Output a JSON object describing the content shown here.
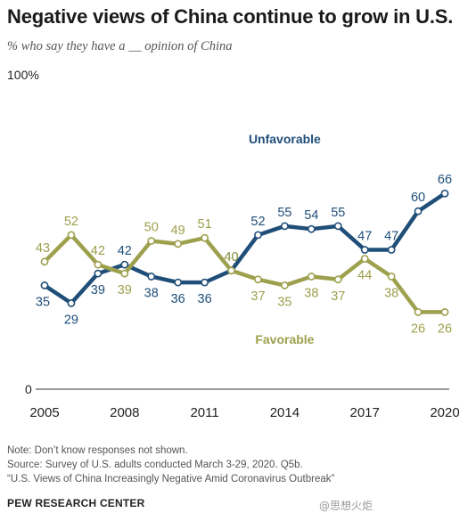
{
  "header": {
    "title": "Negative views of China continue to grow in U.S.",
    "subtitle": "% who say they have a __ opinion of China"
  },
  "colors": {
    "unfavorable": "#1f4e79",
    "favorable": "#9da04d",
    "axis": "#333333"
  },
  "chart_data": {
    "type": "line",
    "x": [
      2005,
      2006,
      2007,
      2008,
      2009,
      2010,
      2011,
      2012,
      2013,
      2014,
      2015,
      2016,
      2017,
      2018,
      2019,
      2020
    ],
    "xticks": [
      "2005",
      "2008",
      "2011",
      "2014",
      "2017",
      "2020"
    ],
    "ylim": [
      0,
      100
    ],
    "ytick_labels": [
      "0",
      "100%"
    ],
    "grid": false,
    "series": [
      {
        "name": "Unfavorable",
        "values": [
          35,
          29,
          39,
          42,
          38,
          36,
          36,
          40,
          52,
          55,
          54,
          55,
          47,
          47,
          60,
          66
        ]
      },
      {
        "name": "Favorable",
        "values": [
          43,
          52,
          42,
          39,
          50,
          49,
          51,
          40,
          37,
          35,
          38,
          37,
          44,
          38,
          26,
          26
        ]
      }
    ]
  },
  "footer": {
    "note": "Note: Don’t know responses not shown.",
    "source": "Source: Survey of U.S. adults conducted March 3-29, 2020. Q5b.",
    "report": "“U.S. Views of China Increasingly Negative Amid Coronavirus Outbreak”",
    "brand": "PEW RESEARCH CENTER",
    "watermark": "@思想火炬"
  }
}
